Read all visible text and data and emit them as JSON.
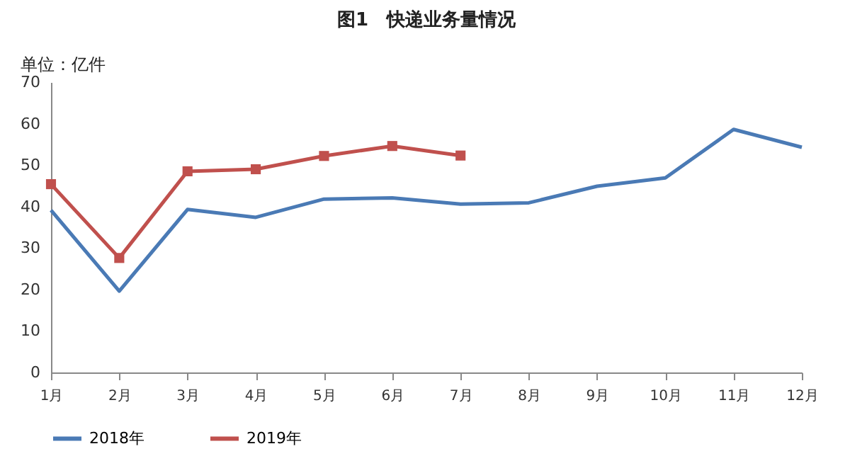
{
  "chart_data": {
    "type": "line",
    "title": "图1　快递业务量情况",
    "ylabel": "单位：亿件",
    "categories": [
      "1月",
      "2月",
      "3月",
      "4月",
      "5月",
      "6月",
      "7月",
      "8月",
      "9月",
      "10月",
      "11月",
      "12月"
    ],
    "series": [
      {
        "name": "2018年",
        "color": "#4a7ab5",
        "marker": "none",
        "values": [
          39.1,
          19.6,
          39.3,
          37.4,
          41.8,
          42.1,
          40.6,
          40.9,
          44.9,
          46.9,
          58.6,
          54.3
        ]
      },
      {
        "name": "2019年",
        "color": "#c0504d",
        "marker": "square",
        "values": [
          45.4,
          27.6,
          48.5,
          49.0,
          52.2,
          54.6,
          52.3,
          null,
          null,
          null,
          null,
          null
        ]
      }
    ],
    "ylim": [
      0,
      70
    ],
    "yticks": [
      0,
      10,
      20,
      30,
      40,
      50,
      60,
      70
    ],
    "grid": false,
    "legend": "bottom",
    "line_style": "solid"
  }
}
